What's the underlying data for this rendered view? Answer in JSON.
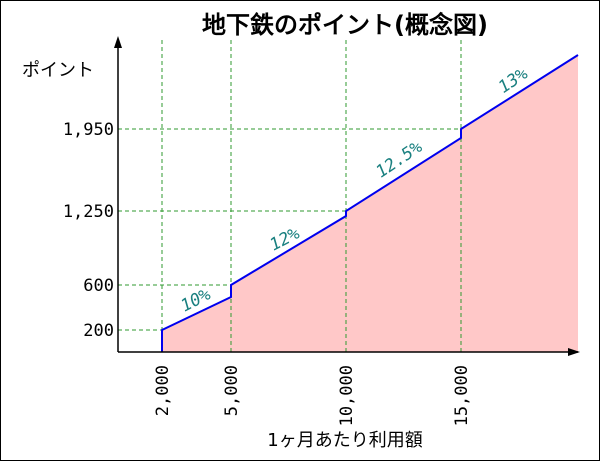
{
  "chart_data": {
    "type": "area",
    "title": "地下鉄のポイント(概念図)",
    "xlabel": "1ヶ月あたり利用額",
    "ylabel": "ポイント",
    "x_ticks": [
      "2,000",
      "5,000",
      "10,000",
      "15,000"
    ],
    "y_ticks": [
      "200",
      "600",
      "1,250",
      "1,950"
    ],
    "x_tick_values": [
      2000,
      5000,
      10000,
      15000
    ],
    "y_tick_values": [
      200,
      600,
      1250,
      1950
    ],
    "segments": [
      {
        "x_start": 2000,
        "x_end": 5000,
        "rate": "10%"
      },
      {
        "x_start": 5000,
        "x_end": 10000,
        "rate": "12%"
      },
      {
        "x_start": 10000,
        "x_end": 15000,
        "rate": "12.5%"
      },
      {
        "x_start": 15000,
        "x_end": 20000,
        "rate": "13%"
      }
    ],
    "colors": {
      "line": "#0000ee",
      "fill": "#ffc8c8",
      "grid": "#2f9a2f",
      "title": "#1a1aa0",
      "rate_label": "#1a8080"
    },
    "grid": true
  }
}
